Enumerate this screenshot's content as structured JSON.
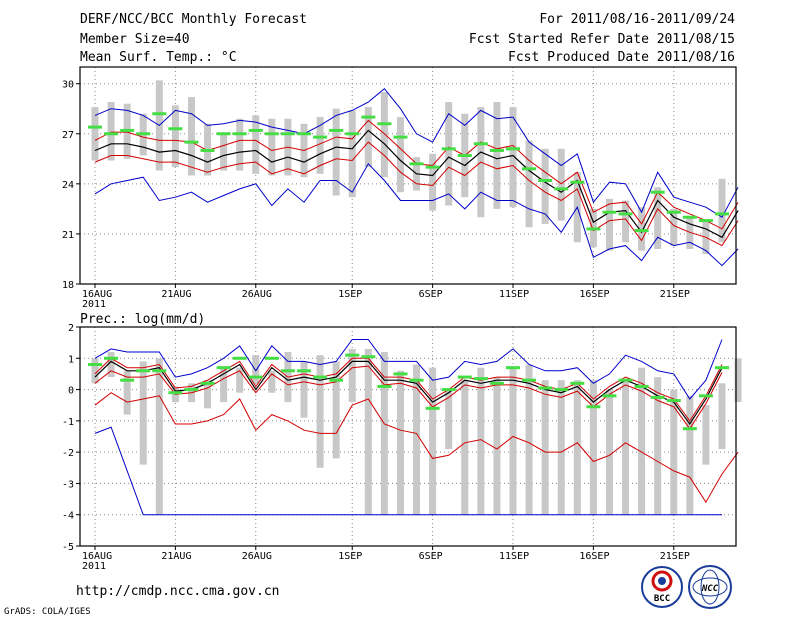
{
  "header": {
    "title": "DERF/NCC/BCC Monthly Forecast",
    "member_size": "Member Size=40",
    "variable": "Mean Surf. Temp.: °C",
    "forecast_period": "For 2011/08/16-2011/09/24",
    "fcst_started": "Fcst Started Refer Date 2011/08/15",
    "fcst_produced": "Fcst Produced Date 2011/08/16"
  },
  "footer": {
    "url": "http://cmdp.ncc.cma.gov.cn",
    "grads": "GrADS: COLA/IGES",
    "logo_bcc": "BCC",
    "logo_ncc": "NCC"
  },
  "colors": {
    "box": "#c8c8c8",
    "mean": "#000000",
    "spread": "#d40000",
    "envelope": "#0000cc",
    "observed": "#44dd44"
  },
  "chart_data": [
    {
      "type": "line",
      "name": "temperature",
      "title": "Mean Surf. Temp.: °C",
      "xlabel": "",
      "ylabel": "",
      "x_ticks": [
        {
          "day": 0,
          "label": "16AUG",
          "sub": "2011"
        },
        {
          "day": 5,
          "label": "21AUG"
        },
        {
          "day": 10,
          "label": "26AUG"
        },
        {
          "day": 16,
          "label": "1SEP"
        },
        {
          "day": 21,
          "label": "6SEP"
        },
        {
          "day": 26,
          "label": "11SEP"
        },
        {
          "day": 31,
          "label": "16SEP"
        },
        {
          "day": 36,
          "label": "21SEP"
        }
      ],
      "xlim": [
        0,
        39
      ],
      "ylim": [
        18,
        31
      ],
      "y_ticks": [
        18,
        21,
        24,
        27,
        30
      ],
      "box_low": [
        25.4,
        25.4,
        25.5,
        25.7,
        24.8,
        25.0,
        24.5,
        24.5,
        24.8,
        24.8,
        24.6,
        24.5,
        24.5,
        24.4,
        24.6,
        23.3,
        23.2,
        25.0,
        24.4,
        23.5,
        23.6,
        22.4,
        22.7,
        23.2,
        22.0,
        22.5,
        22.6,
        21.4,
        21.6,
        21.8,
        20.5,
        20.2,
        20.0,
        20.5,
        20.0,
        20.1,
        20.3,
        20.1,
        19.8,
        20.5
      ],
      "box_high": [
        28.6,
        28.9,
        28.8,
        28.2,
        30.2,
        28.7,
        29.2,
        27.6,
        27.0,
        27.9,
        28.1,
        27.9,
        27.9,
        27.6,
        28.0,
        28.5,
        28.4,
        28.6,
        29.5,
        28.0,
        25.6,
        25.8,
        28.9,
        28.2,
        28.6,
        28.9,
        28.6,
        26.6,
        26.1,
        26.1,
        24.7,
        22.5,
        23.1,
        23.0,
        22.6,
        23.8,
        22.5,
        22.0,
        21.8,
        24.3
      ],
      "observed": [
        27.4,
        27.0,
        27.2,
        27.0,
        28.2,
        27.3,
        26.5,
        26.0,
        27.0,
        27.0,
        27.2,
        27.0,
        27.0,
        27.0,
        26.8,
        27.2,
        27.0,
        28.0,
        27.6,
        26.8,
        25.2,
        25.0,
        26.1,
        25.7,
        26.4,
        26.0,
        26.1,
        24.9,
        24.2,
        23.7,
        24.1,
        21.3,
        22.3,
        22.2,
        21.2,
        23.5,
        22.3,
        22.0,
        21.8,
        22.2
      ],
      "mean": [
        26.0,
        26.4,
        26.4,
        26.2,
        25.9,
        26.0,
        25.7,
        25.3,
        25.7,
        25.9,
        26.0,
        25.3,
        25.6,
        25.3,
        25.8,
        26.2,
        26.1,
        27.2,
        26.4,
        25.4,
        24.6,
        24.5,
        25.6,
        25.1,
        25.9,
        25.5,
        25.7,
        24.8,
        24.1,
        23.5,
        24.2,
        21.7,
        22.3,
        22.4,
        21.1,
        23.0,
        22.0,
        21.6,
        21.3,
        20.8,
        22.4
      ],
      "upper_spread": [
        26.6,
        27.1,
        27.1,
        26.8,
        26.6,
        26.6,
        26.5,
        26.0,
        26.3,
        26.6,
        26.6,
        26.0,
        26.2,
        26.0,
        26.4,
        26.8,
        26.7,
        27.8,
        27.0,
        26.1,
        25.2,
        25.1,
        26.2,
        25.7,
        26.5,
        26.1,
        26.3,
        25.4,
        24.7,
        24.0,
        24.7,
        22.3,
        22.8,
        22.9,
        21.6,
        23.5,
        22.6,
        22.2,
        21.8,
        21.3,
        22.9
      ],
      "lower_spread": [
        25.3,
        25.7,
        25.7,
        25.5,
        25.3,
        25.3,
        25.0,
        24.7,
        25.0,
        25.2,
        25.3,
        24.6,
        24.9,
        24.6,
        25.1,
        25.5,
        25.4,
        26.5,
        25.7,
        24.7,
        24.0,
        23.9,
        25.0,
        24.5,
        25.3,
        24.9,
        25.1,
        24.2,
        23.5,
        23.0,
        23.7,
        21.2,
        21.8,
        21.9,
        20.6,
        22.5,
        21.5,
        21.1,
        20.8,
        20.3,
        21.8
      ],
      "upper_env": [
        28.1,
        28.5,
        28.4,
        28.1,
        27.5,
        28.4,
        28.2,
        27.5,
        27.6,
        27.8,
        27.7,
        27.4,
        27.2,
        27.0,
        27.5,
        28.1,
        28.4,
        28.9,
        29.7,
        28.5,
        27.0,
        26.5,
        28.2,
        27.5,
        28.4,
        27.9,
        28.0,
        26.5,
        25.8,
        25.1,
        25.8,
        22.9,
        24.1,
        24.0,
        22.3,
        24.7,
        23.2,
        22.9,
        22.6,
        22.0,
        23.8
      ],
      "lower_env": [
        23.4,
        24.0,
        24.2,
        24.4,
        23.0,
        23.2,
        23.5,
        22.9,
        23.3,
        23.7,
        24.0,
        22.7,
        23.7,
        22.9,
        24.2,
        24.2,
        23.5,
        25.2,
        24.2,
        23.0,
        23.0,
        23.0,
        23.4,
        22.5,
        23.5,
        23.0,
        23.0,
        22.5,
        22.2,
        21.1,
        22.6,
        19.6,
        20.1,
        20.3,
        19.4,
        20.8,
        20.3,
        20.5,
        20.0,
        19.1,
        20.1
      ]
    },
    {
      "type": "line",
      "name": "precipitation",
      "title": "Prec.: log(mm/d)",
      "xlabel": "",
      "ylabel": "",
      "x_ticks": [
        {
          "day": 0,
          "label": "16AUG",
          "sub": "2011"
        },
        {
          "day": 5,
          "label": "21AUG"
        },
        {
          "day": 10,
          "label": "26AUG"
        },
        {
          "day": 16,
          "label": "1SEP"
        },
        {
          "day": 21,
          "label": "6SEP"
        },
        {
          "day": 26,
          "label": "11SEP"
        },
        {
          "day": 31,
          "label": "16SEP"
        },
        {
          "day": 36,
          "label": "21SEP"
        }
      ],
      "xlim": [
        0,
        39
      ],
      "ylim": [
        -5,
        2
      ],
      "y_ticks": [
        -5,
        -4,
        -3,
        -2,
        -1,
        0,
        1,
        2
      ],
      "box_low": [
        0.2,
        0.4,
        -0.8,
        -2.4,
        -4.0,
        -0.4,
        -0.4,
        -0.6,
        -0.4,
        -0.1,
        0.2,
        -0.1,
        -0.4,
        -0.9,
        -2.5,
        -2.2,
        -0.4,
        -4.0,
        -4.0,
        -4.0,
        -4.0,
        -4.0,
        -1.9,
        -4.0,
        -4.0,
        -4.0,
        -4.0,
        -4.0,
        -4.0,
        -4.0,
        -4.0,
        -4.0,
        -4.0,
        -4.0,
        -4.0,
        -4.0,
        -4.0,
        -4.0,
        -2.4,
        -1.9,
        -0.4
      ],
      "box_high": [
        1.0,
        1.2,
        0.6,
        0.9,
        1.0,
        0.1,
        0.2,
        0.3,
        0.7,
        0.7,
        1.1,
        0.6,
        1.2,
        0.9,
        1.1,
        0.9,
        1.3,
        1.3,
        1.2,
        0.6,
        0.8,
        0.7,
        0.0,
        0.3,
        0.7,
        0.4,
        0.7,
        0.8,
        0.3,
        0.3,
        0.3,
        0.3,
        0.0,
        0.3,
        0.7,
        0.4,
        0.0,
        -0.2,
        -0.5,
        0.2,
        1.0
      ],
      "observed": [
        0.8,
        1.0,
        0.3,
        0.6,
        0.6,
        -0.1,
        0.0,
        0.2,
        0.7,
        1.0,
        0.4,
        1.0,
        0.6,
        0.6,
        0.4,
        0.3,
        1.1,
        1.05,
        0.1,
        0.5,
        0.3,
        -0.6,
        0.0,
        0.4,
        0.35,
        0.2,
        0.7,
        0.3,
        0.05,
        0.0,
        0.2,
        -0.55,
        -0.2,
        0.3,
        0.1,
        -0.25,
        -0.35,
        -1.25,
        -0.2,
        0.7
      ],
      "mean": [
        0.4,
        0.9,
        0.6,
        0.6,
        0.7,
        -0.05,
        0.0,
        0.2,
        0.5,
        0.8,
        0.0,
        0.7,
        0.3,
        0.4,
        0.3,
        0.4,
        0.9,
        0.9,
        0.3,
        0.3,
        0.2,
        -0.4,
        -0.1,
        0.3,
        0.2,
        0.3,
        0.3,
        0.2,
        0.0,
        -0.1,
        0.1,
        -0.4,
        0.0,
        0.3,
        0.1,
        -0.2,
        -0.4,
        -1.1,
        -0.3,
        0.7
      ],
      "upper_spread": [
        0.5,
        1.0,
        0.7,
        0.7,
        0.8,
        0.05,
        0.1,
        0.3,
        0.6,
        0.9,
        0.1,
        0.8,
        0.4,
        0.5,
        0.4,
        0.5,
        1.0,
        1.0,
        0.4,
        0.4,
        0.3,
        -0.3,
        0.0,
        0.4,
        0.3,
        0.4,
        0.4,
        0.3,
        0.1,
        0.0,
        0.2,
        -0.3,
        0.1,
        0.4,
        0.2,
        -0.1,
        -0.3,
        -1.0,
        -0.2,
        0.8
      ],
      "lower_spread": [
        0.2,
        0.6,
        0.4,
        0.4,
        0.5,
        -0.15,
        -0.1,
        0.05,
        0.35,
        0.6,
        -0.1,
        0.5,
        0.15,
        0.25,
        0.15,
        0.25,
        0.7,
        0.75,
        0.15,
        0.2,
        0.05,
        -0.55,
        -0.25,
        0.15,
        0.05,
        0.15,
        0.15,
        0.05,
        -0.15,
        -0.25,
        -0.05,
        -0.55,
        -0.15,
        0.15,
        -0.05,
        -0.35,
        -0.55,
        -1.25,
        -0.45,
        0.55
      ],
      "lower_red": [
        -0.5,
        -0.1,
        -0.4,
        -0.3,
        -0.2,
        -1.1,
        -1.1,
        -1.0,
        -0.8,
        -0.3,
        -1.3,
        -0.8,
        -1.0,
        -1.3,
        -1.4,
        -1.4,
        -0.5,
        -0.3,
        -1.1,
        -1.3,
        -1.4,
        -2.2,
        -2.1,
        -1.7,
        -1.6,
        -1.9,
        -1.5,
        -1.7,
        -2.0,
        -2.0,
        -1.7,
        -2.3,
        -2.1,
        -1.7,
        -2.0,
        -2.3,
        -2.6,
        -2.8,
        -3.6,
        -2.7,
        -2.0
      ],
      "upper_env": [
        1.0,
        1.3,
        1.2,
        1.2,
        1.2,
        0.4,
        0.5,
        0.7,
        1.0,
        1.4,
        0.6,
        1.4,
        0.9,
        0.9,
        0.8,
        0.9,
        1.6,
        1.6,
        0.9,
        0.9,
        0.9,
        0.3,
        0.4,
        0.9,
        0.8,
        0.9,
        1.3,
        0.8,
        0.6,
        0.6,
        0.7,
        0.2,
        0.5,
        1.1,
        0.9,
        0.6,
        0.5,
        -0.3,
        0.3,
        1.6
      ],
      "lower_env": [
        -1.4,
        -1.2,
        -2.6,
        -4.0,
        -4.0,
        -4.0,
        -4.0,
        -4.0,
        -4.0,
        -4.0,
        -4.0,
        -4.0,
        -4.0,
        -4.0,
        -4.0,
        -4.0,
        -4.0,
        -4.0,
        -4.0,
        -4.0,
        -4.0,
        -4.0,
        -4.0,
        -4.0,
        -4.0,
        -4.0,
        -4.0,
        -4.0,
        -4.0,
        -4.0,
        -4.0,
        -4.0,
        -4.0,
        -4.0,
        -4.0,
        -4.0,
        -4.0,
        -4.0,
        -4.0,
        -4.0
      ]
    }
  ]
}
